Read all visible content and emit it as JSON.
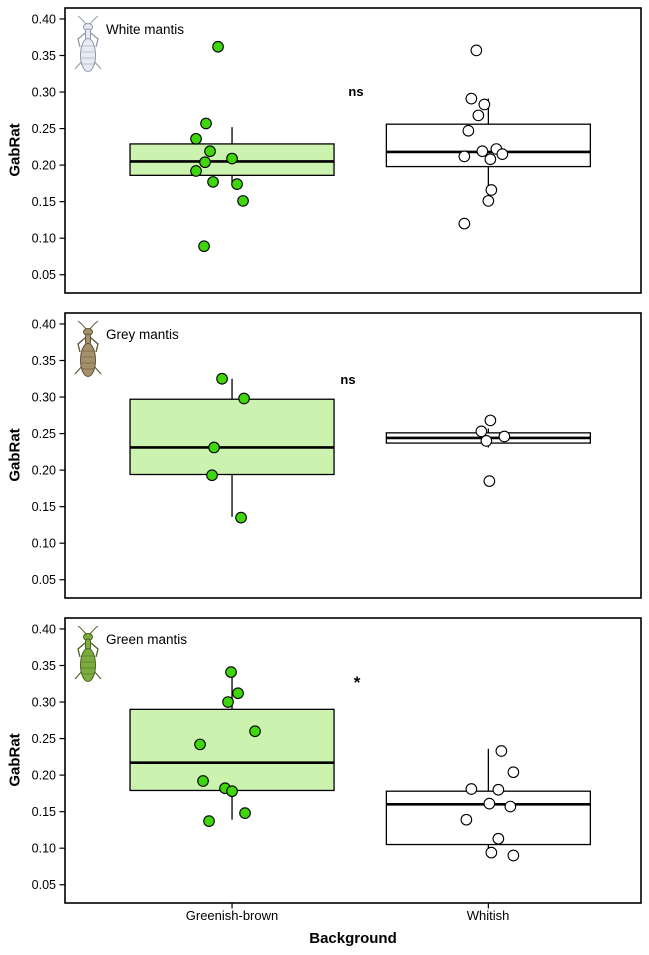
{
  "chart_data": {
    "type": "boxplot",
    "xlabel": "Background",
    "ylabel": "GabRat",
    "categories": [
      "Greenish-brown",
      "Whitish"
    ],
    "y_ticks": [
      "0.05",
      "0.10",
      "0.15",
      "0.20",
      "0.25",
      "0.30",
      "0.35",
      "0.40"
    ],
    "y_range": [
      0.025,
      0.415
    ],
    "grid": "off",
    "legend": "none",
    "panels": [
      {
        "label": "White mantis",
        "significance": "ns",
        "sig_y": 0.3,
        "mantis": {
          "body": "#e8eaf1",
          "stroke": "#8f98ab"
        },
        "groups": [
          {
            "category": "Greenish-brown",
            "box_fill": "#ccf2b0",
            "point_fill": "#3fd60e",
            "box": {
              "whisker_low": 0.176,
              "q1": 0.186,
              "median": 0.205,
              "q3": 0.229,
              "whisker_high": 0.252
            },
            "points": [
              [
                -14,
                0.362
              ],
              [
                -26,
                0.257
              ],
              [
                -36,
                0.236
              ],
              [
                -22,
                0.219
              ],
              [
                0,
                0.209
              ],
              [
                -27,
                0.204
              ],
              [
                -36,
                0.192
              ],
              [
                -19,
                0.177
              ],
              [
                5,
                0.174
              ],
              [
                11,
                0.151
              ],
              [
                -28,
                0.089
              ]
            ]
          },
          {
            "category": "Whitish",
            "box_fill": "#ffffff",
            "point_fill": "#ffffff",
            "box": {
              "whisker_low": 0.151,
              "q1": 0.198,
              "median": 0.218,
              "q3": 0.256,
              "whisker_high": 0.291
            },
            "points": [
              [
                -12,
                0.357
              ],
              [
                -17,
                0.291
              ],
              [
                -4,
                0.283
              ],
              [
                -10,
                0.268
              ],
              [
                -20,
                0.247
              ],
              [
                8,
                0.222
              ],
              [
                -6,
                0.219
              ],
              [
                14,
                0.215
              ],
              [
                -24,
                0.212
              ],
              [
                2,
                0.208
              ],
              [
                3,
                0.166
              ],
              [
                0,
                0.151
              ],
              [
                -24,
                0.12
              ]
            ]
          }
        ]
      },
      {
        "label": "Grey mantis",
        "significance": "ns",
        "sig_y": 0.322,
        "mantis": {
          "body": "#a5906c",
          "stroke": "#5f4f35"
        },
        "groups": [
          {
            "category": "Greenish-brown",
            "box_fill": "#ccf2b0",
            "point_fill": "#3fd60e",
            "box": {
              "whisker_low": 0.136,
              "q1": 0.194,
              "median": 0.231,
              "q3": 0.297,
              "whisker_high": 0.325
            },
            "points": [
              [
                -10,
                0.325
              ],
              [
                12,
                0.298
              ],
              [
                -18,
                0.231
              ],
              [
                -20,
                0.193
              ],
              [
                9,
                0.135
              ]
            ]
          },
          {
            "category": "Whitish",
            "box_fill": "#ffffff",
            "point_fill": "#ffffff",
            "box": {
              "whisker_low": 0.231,
              "q1": 0.237,
              "median": 0.244,
              "q3": 0.251,
              "whisker_high": 0.257
            },
            "points": [
              [
                2,
                0.268
              ],
              [
                -7,
                0.253
              ],
              [
                16,
                0.246
              ],
              [
                -2,
                0.24
              ],
              [
                1,
                0.185
              ]
            ]
          }
        ]
      },
      {
        "label": "Green mantis",
        "significance": "*",
        "sig_y": 0.325,
        "mantis": {
          "body": "#7cab3e",
          "stroke": "#46621f"
        },
        "groups": [
          {
            "category": "Greenish-brown",
            "box_fill": "#ccf2b0",
            "point_fill": "#3fd60e",
            "box": {
              "whisker_low": 0.139,
              "q1": 0.179,
              "median": 0.217,
              "q3": 0.29,
              "whisker_high": 0.342
            },
            "points": [
              [
                -1,
                0.341
              ],
              [
                6,
                0.312
              ],
              [
                -4,
                0.3
              ],
              [
                23,
                0.26
              ],
              [
                -32,
                0.242
              ],
              [
                -29,
                0.192
              ],
              [
                -7,
                0.182
              ],
              [
                0,
                0.178
              ],
              [
                13,
                0.148
              ],
              [
                -23,
                0.137
              ]
            ]
          },
          {
            "category": "Whitish",
            "box_fill": "#ffffff",
            "point_fill": "#ffffff",
            "box": {
              "whisker_low": 0.089,
              "q1": 0.105,
              "median": 0.16,
              "q3": 0.178,
              "whisker_high": 0.236
            },
            "points": [
              [
                13,
                0.233
              ],
              [
                25,
                0.204
              ],
              [
                -17,
                0.181
              ],
              [
                10,
                0.18
              ],
              [
                1,
                0.161
              ],
              [
                22,
                0.157
              ],
              [
                -22,
                0.139
              ],
              [
                10,
                0.113
              ],
              [
                3,
                0.094
              ],
              [
                25,
                0.09
              ]
            ]
          }
        ]
      }
    ]
  }
}
